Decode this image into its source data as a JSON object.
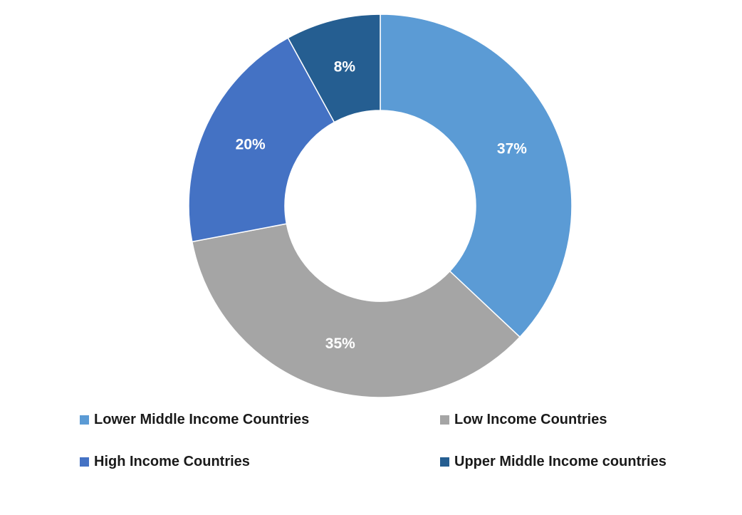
{
  "chart_data": {
    "type": "pie",
    "variant": "donut",
    "title": "",
    "legend_position": "bottom",
    "slices": [
      {
        "name": "Lower Middle Income Countries",
        "value": 37,
        "label": "37%",
        "color": "#5b9bd5"
      },
      {
        "name": "Low Income Countries",
        "value": 35,
        "label": "35%",
        "color": "#a5a5a5"
      },
      {
        "name": "High Income Countries",
        "value": 20,
        "label": "20%",
        "color": "#4472c4"
      },
      {
        "name": "Upper Middle Income countries",
        "value": 8,
        "label": "8%",
        "color": "#255e91"
      }
    ],
    "legend": [
      {
        "label": "Lower Middle Income Countries",
        "color": "#5b9bd5"
      },
      {
        "label": "Low Income Countries",
        "color": "#a5a5a5"
      },
      {
        "label": "High Income Countries",
        "color": "#4472c4"
      },
      {
        "label": "Upper Middle Income countries",
        "color": "#255e91"
      }
    ]
  }
}
